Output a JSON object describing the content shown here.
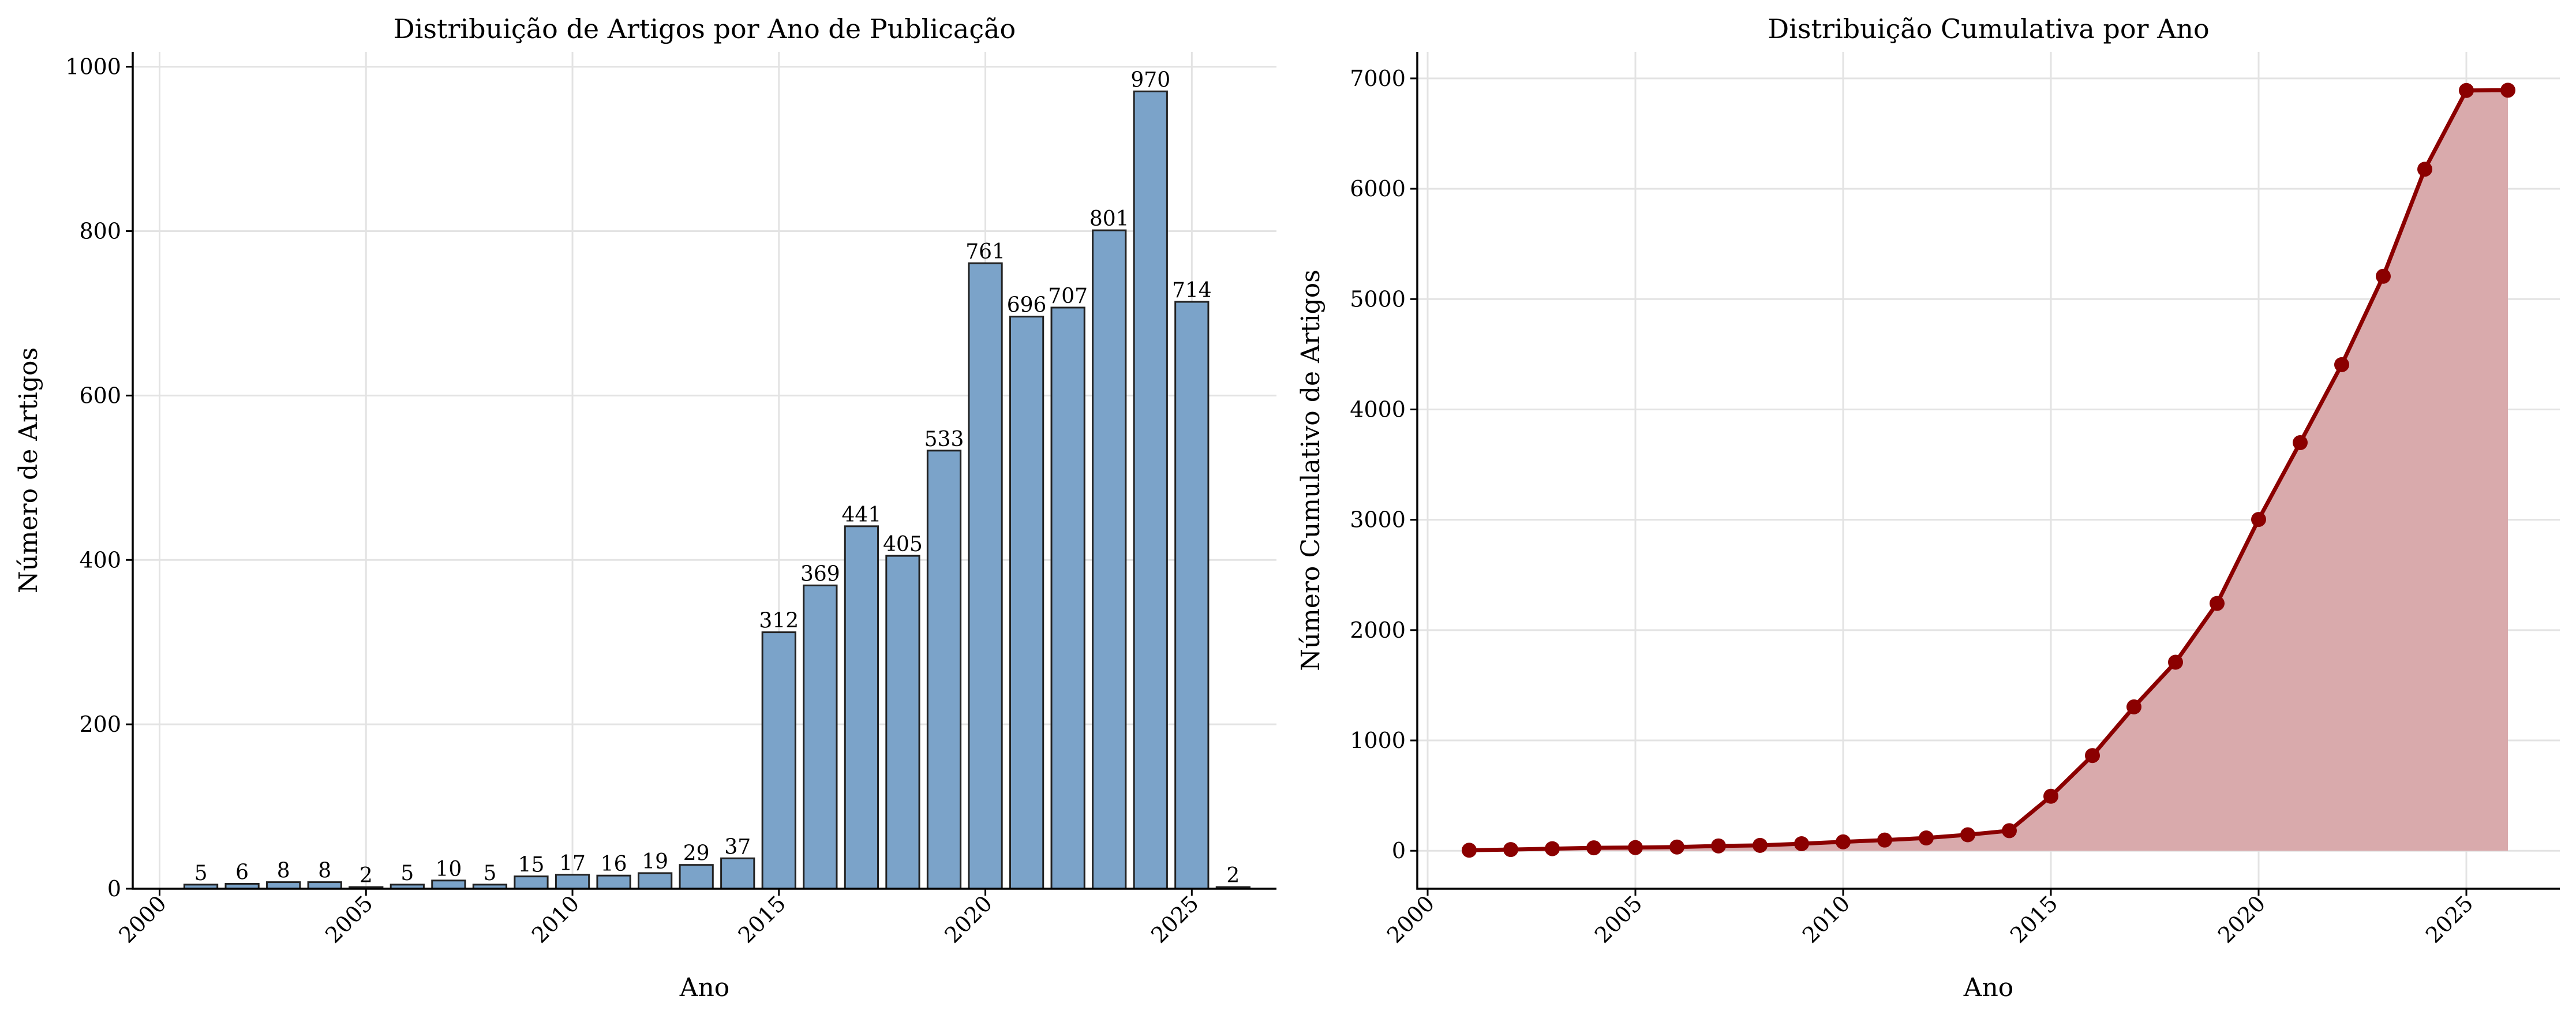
{
  "chart_data": [
    {
      "type": "bar",
      "title": "Distribuição de Artigos por Ano de Publicação",
      "xlabel": "Ano",
      "ylabel": "Número de Artigos",
      "x": [
        2001,
        2002,
        2003,
        2004,
        2005,
        2006,
        2007,
        2008,
        2009,
        2010,
        2011,
        2012,
        2013,
        2014,
        2015,
        2016,
        2017,
        2018,
        2019,
        2020,
        2021,
        2022,
        2023,
        2024,
        2025,
        2026
      ],
      "values": [
        5,
        6,
        8,
        8,
        2,
        5,
        10,
        5,
        15,
        17,
        16,
        19,
        29,
        37,
        312,
        369,
        441,
        405,
        533,
        761,
        696,
        707,
        801,
        970,
        714,
        2
      ],
      "data_labels": [
        "5",
        "6",
        "8",
        "8",
        "2",
        "5",
        "10",
        "5",
        "15",
        "17",
        "16",
        "19",
        "29",
        "37",
        "312",
        "369",
        "441",
        "405",
        "533",
        "761",
        "696",
        "707",
        "801",
        "970",
        "714",
        "2"
      ],
      "xticks": [
        "2000",
        "2005",
        "2010",
        "2015",
        "2020",
        "2025"
      ],
      "yticks": [
        "0",
        "200",
        "400",
        "600",
        "800",
        "1000"
      ],
      "xlim": [
        1999.35,
        2027.05
      ],
      "ylim": [
        0,
        1018
      ],
      "grid": true,
      "colors": {
        "bar_fill": "#7ba3c9",
        "bar_edge": "#222222"
      }
    },
    {
      "type": "area",
      "title": "Distribuição Cumulativa por Ano",
      "xlabel": "Ano",
      "ylabel": "Número Cumulativo de Artigos",
      "x": [
        2001,
        2002,
        2003,
        2004,
        2005,
        2006,
        2007,
        2008,
        2009,
        2010,
        2011,
        2012,
        2013,
        2014,
        2015,
        2016,
        2017,
        2018,
        2019,
        2020,
        2021,
        2022,
        2023,
        2024,
        2025,
        2026
      ],
      "values": [
        5,
        11,
        19,
        27,
        29,
        34,
        44,
        49,
        64,
        81,
        97,
        116,
        145,
        182,
        494,
        863,
        1304,
        1709,
        2242,
        3003,
        3699,
        4406,
        5207,
        6177,
        6891,
        6893
      ],
      "xticks": [
        "2000",
        "2005",
        "2010",
        "2015",
        "2020",
        "2025"
      ],
      "yticks": [
        "0",
        "1000",
        "2000",
        "3000",
        "4000",
        "5000",
        "6000",
        "7000"
      ],
      "xlim": [
        1999.75,
        2027.25
      ],
      "ylim": [
        -344,
        7240
      ],
      "grid": true,
      "colors": {
        "line": "#8b0000",
        "fill": "#d9aaac"
      }
    }
  ]
}
